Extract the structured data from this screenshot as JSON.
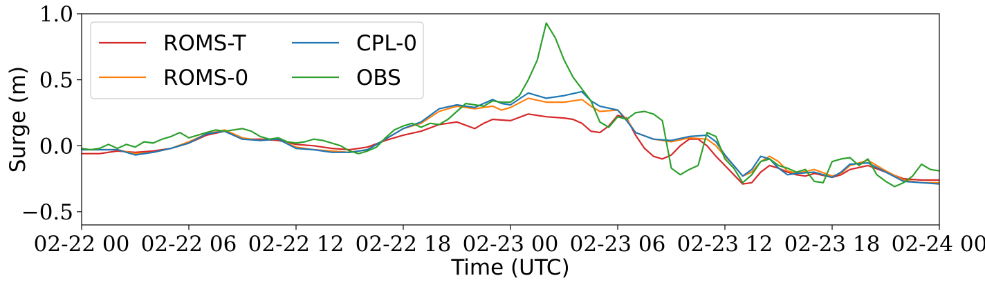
{
  "chart_data": {
    "type": "line",
    "title": "",
    "xlabel": "Time (UTC)",
    "ylabel": "Surge (m)",
    "xlim": [
      0,
      48
    ],
    "ylim": [
      -0.6,
      1.0
    ],
    "xticks": [
      {
        "value": 0,
        "label": "02-22 00"
      },
      {
        "value": 6,
        "label": "02-22 06"
      },
      {
        "value": 12,
        "label": "02-22 12"
      },
      {
        "value": 18,
        "label": "02-22 18"
      },
      {
        "value": 24,
        "label": "02-23 00"
      },
      {
        "value": 30,
        "label": "02-23 06"
      },
      {
        "value": 36,
        "label": "02-23 12"
      },
      {
        "value": 42,
        "label": "02-23 18"
      },
      {
        "value": 48,
        "label": "02-24 00"
      }
    ],
    "yticks": [
      {
        "value": 1.0,
        "label": "1.0"
      },
      {
        "value": 0.5,
        "label": "0.5"
      },
      {
        "value": 0.0,
        "label": "0.0"
      },
      {
        "value": -0.5,
        "label": "−0.5"
      }
    ],
    "grid": false,
    "legend": {
      "placement": "top-left",
      "columns": 2
    },
    "series": [
      {
        "name": "ROMS-T",
        "color": "#d62728",
        "points": [
          [
            0,
            -0.06
          ],
          [
            1,
            -0.06
          ],
          [
            2,
            -0.04
          ],
          [
            3,
            -0.05
          ],
          [
            4,
            -0.04
          ],
          [
            5,
            -0.02
          ],
          [
            6,
            0.02
          ],
          [
            7,
            0.08
          ],
          [
            8,
            0.11
          ],
          [
            9,
            0.05
          ],
          [
            10,
            0.05
          ],
          [
            11,
            0.04
          ],
          [
            12,
            0.01
          ],
          [
            13,
            0.0
          ],
          [
            14,
            -0.02
          ],
          [
            15,
            -0.03
          ],
          [
            16,
            -0.01
          ],
          [
            17,
            0.04
          ],
          [
            18,
            0.08
          ],
          [
            19,
            0.11
          ],
          [
            20,
            0.16
          ],
          [
            21,
            0.18
          ],
          [
            22,
            0.13
          ],
          [
            22.5,
            0.17
          ],
          [
            23,
            0.2
          ],
          [
            24,
            0.19
          ],
          [
            25,
            0.24
          ],
          [
            26,
            0.22
          ],
          [
            27,
            0.21
          ],
          [
            27.5,
            0.2
          ],
          [
            28,
            0.17
          ],
          [
            28.5,
            0.11
          ],
          [
            29,
            0.1
          ],
          [
            29.5,
            0.15
          ],
          [
            30,
            0.23
          ],
          [
            30.5,
            0.21
          ],
          [
            31,
            0.08
          ],
          [
            31.5,
            -0.02
          ],
          [
            32,
            -0.08
          ],
          [
            32.5,
            -0.1
          ],
          [
            33,
            -0.07
          ],
          [
            33.5,
            0.0
          ],
          [
            34,
            0.05
          ],
          [
            34.5,
            0.05
          ],
          [
            35,
            0.0
          ],
          [
            35.5,
            -0.08
          ],
          [
            36,
            -0.15
          ],
          [
            36.5,
            -0.22
          ],
          [
            37,
            -0.29
          ],
          [
            37.5,
            -0.28
          ],
          [
            38,
            -0.2
          ],
          [
            38.5,
            -0.15
          ],
          [
            39,
            -0.17
          ],
          [
            39.5,
            -0.2
          ],
          [
            40,
            -0.22
          ],
          [
            40.5,
            -0.23
          ],
          [
            41,
            -0.21
          ],
          [
            42,
            -0.24
          ],
          [
            42.5,
            -0.22
          ],
          [
            43,
            -0.18
          ],
          [
            44,
            -0.15
          ],
          [
            45,
            -0.2
          ],
          [
            46,
            -0.25
          ],
          [
            47,
            -0.26
          ],
          [
            48,
            -0.26
          ]
        ]
      },
      {
        "name": "ROMS-0",
        "color": "#ff7f0e",
        "points": [
          [
            0,
            -0.03
          ],
          [
            1,
            -0.03
          ],
          [
            2,
            -0.03
          ],
          [
            3,
            -0.06
          ],
          [
            4,
            -0.05
          ],
          [
            5,
            -0.02
          ],
          [
            6,
            0.03
          ],
          [
            7,
            0.09
          ],
          [
            8,
            0.12
          ],
          [
            9,
            0.06
          ],
          [
            10,
            0.04
          ],
          [
            11,
            0.05
          ],
          [
            12,
            -0.01
          ],
          [
            13,
            -0.03
          ],
          [
            14,
            -0.04
          ],
          [
            15,
            -0.05
          ],
          [
            16,
            -0.03
          ],
          [
            17,
            0.05
          ],
          [
            18,
            0.13
          ],
          [
            19,
            0.17
          ],
          [
            20,
            0.26
          ],
          [
            21,
            0.3
          ],
          [
            22,
            0.28
          ],
          [
            23,
            0.3
          ],
          [
            23.5,
            0.27
          ],
          [
            24,
            0.29
          ],
          [
            25,
            0.36
          ],
          [
            26,
            0.33
          ],
          [
            27,
            0.33
          ],
          [
            28,
            0.35
          ],
          [
            28.5,
            0.3
          ],
          [
            29,
            0.26
          ],
          [
            30,
            0.27
          ],
          [
            30.5,
            0.2
          ],
          [
            31,
            0.1
          ],
          [
            32,
            0.05
          ],
          [
            33,
            0.03
          ],
          [
            34,
            0.06
          ],
          [
            35,
            0.05
          ],
          [
            35.5,
            0.0
          ],
          [
            36,
            -0.08
          ],
          [
            36.5,
            -0.15
          ],
          [
            37,
            -0.23
          ],
          [
            37.5,
            -0.2
          ],
          [
            38,
            -0.12
          ],
          [
            38.5,
            -0.08
          ],
          [
            39,
            -0.12
          ],
          [
            39.5,
            -0.19
          ],
          [
            40,
            -0.21
          ],
          [
            41,
            -0.18
          ],
          [
            42,
            -0.23
          ],
          [
            42.5,
            -0.21
          ],
          [
            43,
            -0.15
          ],
          [
            44,
            -0.11
          ],
          [
            45,
            -0.19
          ],
          [
            46,
            -0.26
          ],
          [
            47,
            -0.28
          ],
          [
            48,
            -0.28
          ]
        ]
      },
      {
        "name": "CPL-0",
        "color": "#1f77b4",
        "points": [
          [
            0,
            -0.03
          ],
          [
            1,
            -0.03
          ],
          [
            2,
            -0.03
          ],
          [
            3,
            -0.07
          ],
          [
            4,
            -0.05
          ],
          [
            5,
            -0.02
          ],
          [
            6,
            0.02
          ],
          [
            7,
            0.09
          ],
          [
            8,
            0.11
          ],
          [
            9,
            0.05
          ],
          [
            10,
            0.04
          ],
          [
            11,
            0.05
          ],
          [
            12,
            -0.02
          ],
          [
            13,
            -0.03
          ],
          [
            14,
            -0.05
          ],
          [
            15,
            -0.05
          ],
          [
            16,
            -0.03
          ],
          [
            17,
            0.05
          ],
          [
            18,
            0.13
          ],
          [
            19,
            0.18
          ],
          [
            20,
            0.28
          ],
          [
            21,
            0.31
          ],
          [
            22,
            0.29
          ],
          [
            23,
            0.35
          ],
          [
            23.5,
            0.32
          ],
          [
            24,
            0.31
          ],
          [
            25,
            0.4
          ],
          [
            26,
            0.36
          ],
          [
            27,
            0.38
          ],
          [
            28,
            0.41
          ],
          [
            28.5,
            0.34
          ],
          [
            29,
            0.3
          ],
          [
            30,
            0.27
          ],
          [
            30.5,
            0.19
          ],
          [
            31,
            0.1
          ],
          [
            32,
            0.05
          ],
          [
            33,
            0.04
          ],
          [
            34,
            0.07
          ],
          [
            35,
            0.08
          ],
          [
            35.5,
            0.03
          ],
          [
            36,
            -0.07
          ],
          [
            36.5,
            -0.15
          ],
          [
            37,
            -0.23
          ],
          [
            37.5,
            -0.18
          ],
          [
            38,
            -0.08
          ],
          [
            38.5,
            -0.1
          ],
          [
            39,
            -0.17
          ],
          [
            39.5,
            -0.22
          ],
          [
            40,
            -0.21
          ],
          [
            41,
            -0.2
          ],
          [
            42,
            -0.24
          ],
          [
            42.5,
            -0.2
          ],
          [
            43,
            -0.14
          ],
          [
            44,
            -0.13
          ],
          [
            45,
            -0.2
          ],
          [
            46,
            -0.27
          ],
          [
            47,
            -0.28
          ],
          [
            48,
            -0.29
          ]
        ]
      },
      {
        "name": "OBS",
        "color": "#2ca02c",
        "points": [
          [
            0,
            -0.02
          ],
          [
            0.5,
            -0.03
          ],
          [
            1,
            -0.02
          ],
          [
            1.5,
            0.01
          ],
          [
            2,
            -0.02
          ],
          [
            2.5,
            0.01
          ],
          [
            3,
            -0.01
          ],
          [
            3.5,
            0.03
          ],
          [
            4,
            0.02
          ],
          [
            4.5,
            0.05
          ],
          [
            5,
            0.07
          ],
          [
            5.5,
            0.1
          ],
          [
            6,
            0.06
          ],
          [
            6.5,
            0.08
          ],
          [
            7,
            0.1
          ],
          [
            7.5,
            0.12
          ],
          [
            8,
            0.11
          ],
          [
            8.5,
            0.12
          ],
          [
            9,
            0.13
          ],
          [
            9.5,
            0.11
          ],
          [
            10,
            0.07
          ],
          [
            10.5,
            0.05
          ],
          [
            11,
            0.06
          ],
          [
            11.5,
            0.03
          ],
          [
            12,
            0.02
          ],
          [
            12.5,
            0.03
          ],
          [
            13,
            0.05
          ],
          [
            13.5,
            0.04
          ],
          [
            14,
            0.02
          ],
          [
            14.5,
            0.0
          ],
          [
            15,
            -0.04
          ],
          [
            15.5,
            -0.06
          ],
          [
            16,
            -0.04
          ],
          [
            16.5,
            -0.01
          ],
          [
            17,
            0.06
          ],
          [
            17.5,
            0.12
          ],
          [
            18,
            0.15
          ],
          [
            18.5,
            0.17
          ],
          [
            19,
            0.14
          ],
          [
            19.5,
            0.17
          ],
          [
            20,
            0.16
          ],
          [
            20.5,
            0.2
          ],
          [
            21,
            0.26
          ],
          [
            21.5,
            0.32
          ],
          [
            22,
            0.31
          ],
          [
            22.5,
            0.3
          ],
          [
            23,
            0.34
          ],
          [
            23.5,
            0.33
          ],
          [
            24,
            0.33
          ],
          [
            24.5,
            0.38
          ],
          [
            25,
            0.5
          ],
          [
            25.5,
            0.65
          ],
          [
            26,
            0.93
          ],
          [
            26.5,
            0.82
          ],
          [
            27,
            0.65
          ],
          [
            27.5,
            0.52
          ],
          [
            28,
            0.43
          ],
          [
            28.5,
            0.34
          ],
          [
            29,
            0.18
          ],
          [
            29.5,
            0.14
          ],
          [
            30,
            0.22
          ],
          [
            30.5,
            0.2
          ],
          [
            31,
            0.25
          ],
          [
            31.5,
            0.26
          ],
          [
            32,
            0.24
          ],
          [
            32.5,
            0.19
          ],
          [
            33,
            -0.17
          ],
          [
            33.5,
            -0.22
          ],
          [
            34,
            -0.18
          ],
          [
            34.5,
            -0.15
          ],
          [
            35,
            0.1
          ],
          [
            35.5,
            0.07
          ],
          [
            36,
            -0.1
          ],
          [
            36.5,
            -0.17
          ],
          [
            37,
            -0.28
          ],
          [
            37.5,
            -0.22
          ],
          [
            38,
            -0.12
          ],
          [
            38.5,
            -0.1
          ],
          [
            39,
            -0.15
          ],
          [
            39.5,
            -0.17
          ],
          [
            40,
            -0.2
          ],
          [
            40.5,
            -0.18
          ],
          [
            41,
            -0.27
          ],
          [
            41.5,
            -0.28
          ],
          [
            42,
            -0.12
          ],
          [
            42.5,
            -0.1
          ],
          [
            43,
            -0.09
          ],
          [
            43.5,
            -0.15
          ],
          [
            44,
            -0.1
          ],
          [
            44.5,
            -0.22
          ],
          [
            45,
            -0.27
          ],
          [
            45.5,
            -0.31
          ],
          [
            46,
            -0.28
          ],
          [
            46.5,
            -0.23
          ],
          [
            47,
            -0.14
          ],
          [
            47.5,
            -0.18
          ],
          [
            48,
            -0.19
          ]
        ]
      }
    ]
  }
}
